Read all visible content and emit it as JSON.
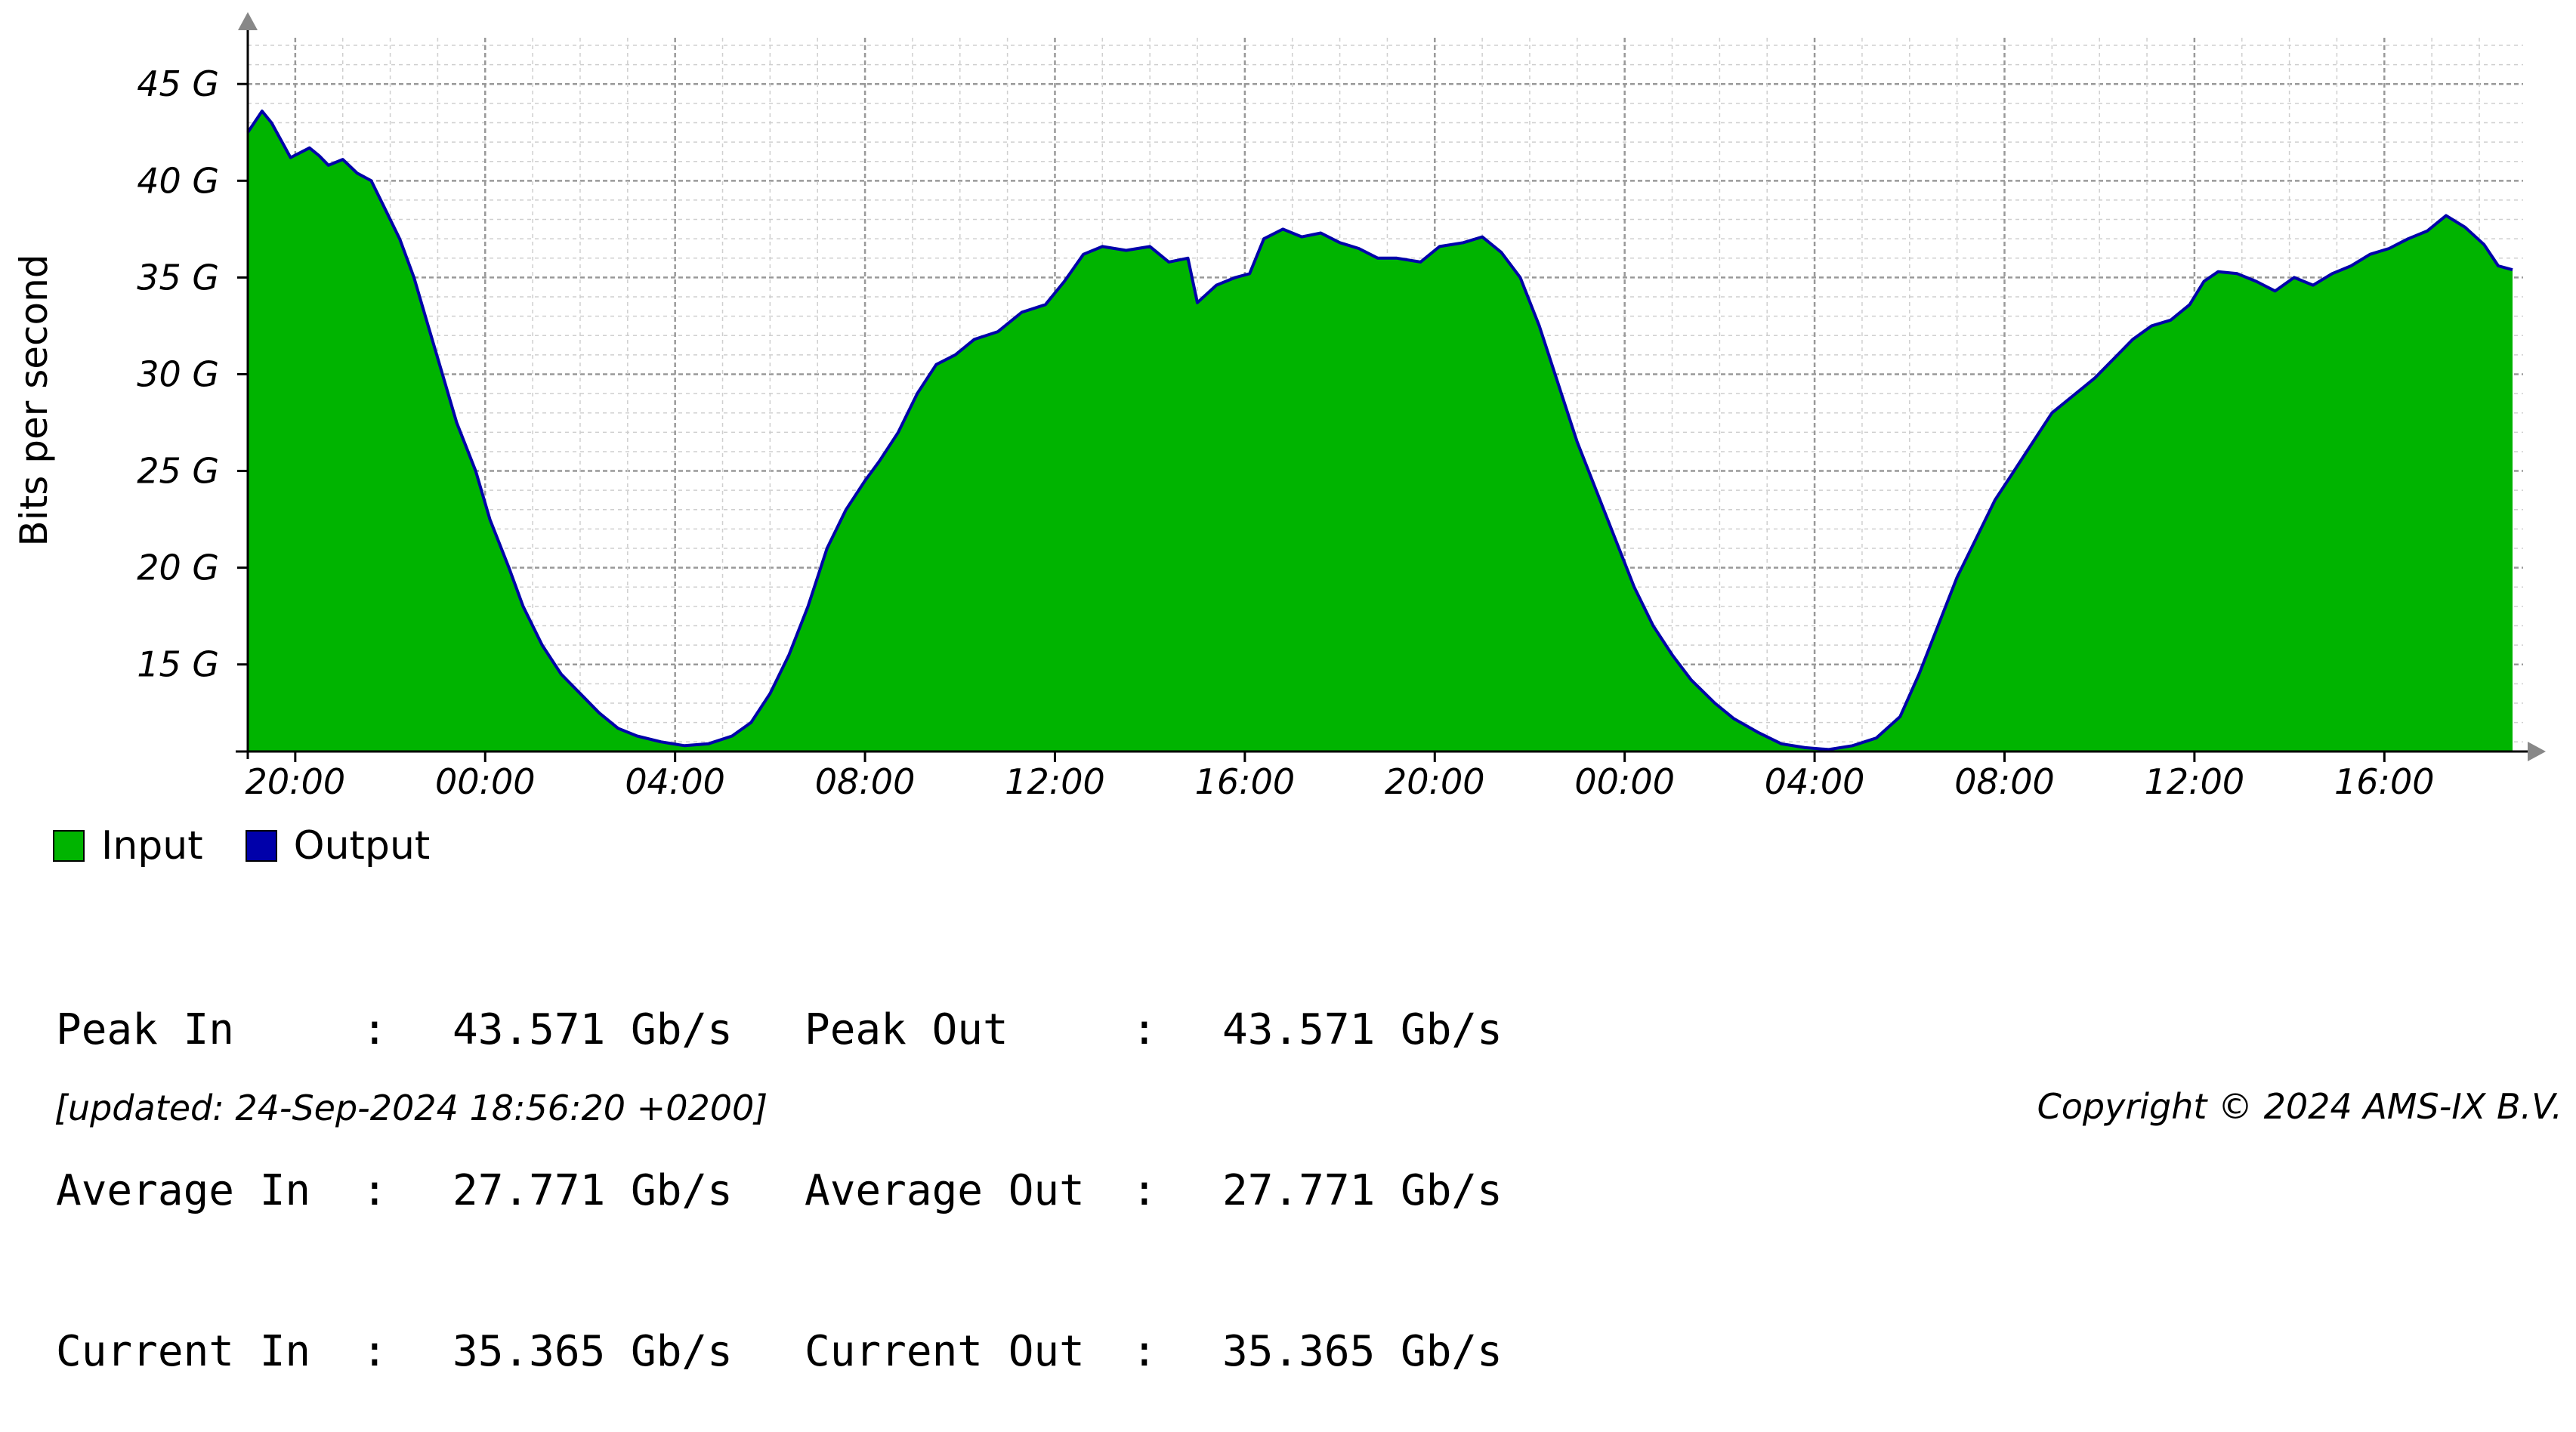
{
  "chart_data": {
    "type": "area",
    "ylabel": "Bits per second",
    "yticks": [
      "15 G",
      "20 G",
      "25 G",
      "30 G",
      "35 G",
      "40 G",
      "45 G"
    ],
    "ytick_values": [
      15,
      20,
      25,
      30,
      35,
      40,
      45
    ],
    "ylim": [
      10.5,
      47
    ],
    "xlim_hours": [
      0,
      47.7
    ],
    "xticks": [
      "20:00",
      "00:00",
      "04:00",
      "08:00",
      "12:00",
      "16:00",
      "20:00",
      "00:00",
      "04:00",
      "08:00",
      "12:00",
      "16:00"
    ],
    "xtick_hours": [
      1,
      5,
      9,
      13,
      17,
      21,
      25,
      29,
      33,
      37,
      41,
      45
    ],
    "grid": true,
    "legend_position": "bottom-left",
    "series": [
      {
        "name": "Input",
        "color": "#00b400",
        "points": [
          [
            0,
            42.5
          ],
          [
            0.3,
            43.6
          ],
          [
            0.5,
            43.0
          ],
          [
            0.9,
            41.2
          ],
          [
            1.3,
            41.7
          ],
          [
            1.5,
            41.3
          ],
          [
            1.7,
            40.8
          ],
          [
            2.0,
            41.1
          ],
          [
            2.3,
            40.4
          ],
          [
            2.6,
            40.0
          ],
          [
            2.9,
            38.5
          ],
          [
            3.2,
            37.0
          ],
          [
            3.5,
            35.0
          ],
          [
            3.8,
            32.5
          ],
          [
            4.1,
            30.0
          ],
          [
            4.4,
            27.5
          ],
          [
            4.8,
            25.0
          ],
          [
            5.1,
            22.5
          ],
          [
            5.5,
            20.0
          ],
          [
            5.8,
            18.0
          ],
          [
            6.2,
            16.0
          ],
          [
            6.6,
            14.5
          ],
          [
            7.0,
            13.5
          ],
          [
            7.4,
            12.5
          ],
          [
            7.8,
            11.7
          ],
          [
            8.2,
            11.3
          ],
          [
            8.7,
            11.0
          ],
          [
            9.2,
            10.8
          ],
          [
            9.7,
            10.9
          ],
          [
            10.2,
            11.3
          ],
          [
            10.6,
            12.0
          ],
          [
            11.0,
            13.5
          ],
          [
            11.4,
            15.5
          ],
          [
            11.8,
            18.0
          ],
          [
            12.2,
            21.0
          ],
          [
            12.6,
            23.0
          ],
          [
            13.0,
            24.5
          ],
          [
            13.3,
            25.5
          ],
          [
            13.7,
            27.0
          ],
          [
            14.1,
            29.0
          ],
          [
            14.5,
            30.5
          ],
          [
            14.9,
            31.0
          ],
          [
            15.3,
            31.8
          ],
          [
            15.8,
            32.2
          ],
          [
            16.3,
            33.2
          ],
          [
            16.8,
            33.6
          ],
          [
            17.2,
            34.8
          ],
          [
            17.6,
            36.2
          ],
          [
            18.0,
            36.6
          ],
          [
            18.5,
            36.4
          ],
          [
            19.0,
            36.6
          ],
          [
            19.4,
            35.8
          ],
          [
            19.8,
            36.0
          ],
          [
            20.0,
            33.7
          ],
          [
            20.4,
            34.6
          ],
          [
            20.8,
            35.0
          ],
          [
            21.1,
            35.2
          ],
          [
            21.4,
            37.0
          ],
          [
            21.8,
            37.5
          ],
          [
            22.2,
            37.1
          ],
          [
            22.6,
            37.3
          ],
          [
            23.0,
            36.8
          ],
          [
            23.4,
            36.5
          ],
          [
            23.8,
            36.0
          ],
          [
            24.2,
            36.0
          ],
          [
            24.7,
            35.8
          ],
          [
            25.1,
            36.6
          ],
          [
            25.6,
            36.8
          ],
          [
            26.0,
            37.1
          ],
          [
            26.4,
            36.3
          ],
          [
            26.8,
            35.0
          ],
          [
            27.2,
            32.5
          ],
          [
            27.6,
            29.5
          ],
          [
            28.0,
            26.5
          ],
          [
            28.4,
            24.0
          ],
          [
            28.8,
            21.5
          ],
          [
            29.2,
            19.0
          ],
          [
            29.6,
            17.0
          ],
          [
            30.0,
            15.5
          ],
          [
            30.4,
            14.2
          ],
          [
            30.9,
            13.0
          ],
          [
            31.3,
            12.2
          ],
          [
            31.8,
            11.5
          ],
          [
            32.3,
            10.9
          ],
          [
            32.8,
            10.7
          ],
          [
            33.3,
            10.6
          ],
          [
            33.8,
            10.8
          ],
          [
            34.3,
            11.2
          ],
          [
            34.8,
            12.3
          ],
          [
            35.2,
            14.5
          ],
          [
            35.6,
            17.0
          ],
          [
            36.0,
            19.5
          ],
          [
            36.4,
            21.5
          ],
          [
            36.8,
            23.5
          ],
          [
            37.2,
            25.0
          ],
          [
            37.6,
            26.5
          ],
          [
            38.0,
            28.0
          ],
          [
            38.5,
            29.0
          ],
          [
            38.9,
            29.8
          ],
          [
            39.3,
            30.8
          ],
          [
            39.7,
            31.8
          ],
          [
            40.1,
            32.5
          ],
          [
            40.5,
            32.8
          ],
          [
            40.9,
            33.6
          ],
          [
            41.2,
            34.8
          ],
          [
            41.5,
            35.3
          ],
          [
            41.9,
            35.2
          ],
          [
            42.3,
            34.8
          ],
          [
            42.7,
            34.3
          ],
          [
            43.1,
            35.0
          ],
          [
            43.5,
            34.6
          ],
          [
            43.9,
            35.2
          ],
          [
            44.3,
            35.6
          ],
          [
            44.7,
            36.2
          ],
          [
            45.1,
            36.5
          ],
          [
            45.5,
            37.0
          ],
          [
            45.9,
            37.4
          ],
          [
            46.3,
            38.2
          ],
          [
            46.7,
            37.6
          ],
          [
            47.1,
            36.7
          ],
          [
            47.4,
            35.6
          ],
          [
            47.7,
            35.4
          ]
        ]
      },
      {
        "name": "Output",
        "color": "#0000aa"
      }
    ]
  },
  "legend": {
    "input_label": "Input",
    "output_label": "Output",
    "input_color": "#00b400",
    "output_color": "#0000aa"
  },
  "stats": {
    "peak_in_label": "Peak In",
    "peak_in_value": "43.571 Gb/s",
    "peak_out_label": "Peak Out",
    "peak_out_value": "43.571 Gb/s",
    "avg_in_label": "Average In",
    "avg_in_value": "27.771 Gb/s",
    "avg_out_label": "Average Out",
    "avg_out_value": "27.771 Gb/s",
    "cur_in_label": "Current In",
    "cur_in_value": "35.365 Gb/s",
    "cur_out_label": "Current Out",
    "cur_out_value": "35.365 Gb/s",
    "sep": ":"
  },
  "footer": {
    "updated": "[updated: 24-Sep-2024 18:56:20 +0200]",
    "copyright": "Copyright © 2024 AMS-IX B.V."
  }
}
